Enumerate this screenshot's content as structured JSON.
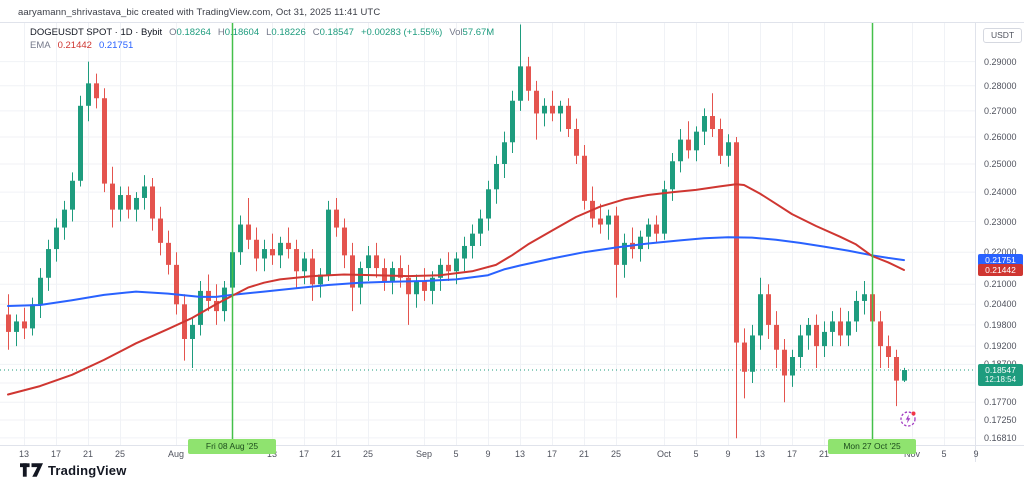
{
  "watermark": "aaryamann_shrivastava_bic created with TradingView.com, Oct 31, 2025 11:41 UTC",
  "legend": {
    "symbol": "DOGEUSDT SPOT · 1D · Bybit",
    "o_label": "O",
    "o": "0.18264",
    "h_label": "H",
    "h": "0.18604",
    "l_label": "L",
    "l": "0.18226",
    "c_label": "C",
    "c": "0.18547",
    "change": "+0.00283 (+1.55%)",
    "vol_label": "Vol",
    "vol": "57.67M",
    "ema_label": "EMA",
    "ema_fast_value": "0.21442",
    "ema_slow_value": "0.21751"
  },
  "axis": {
    "currency": "USDT"
  },
  "footer": {
    "brand": "TradingView"
  },
  "colors": {
    "up": "#1e9c7e",
    "down": "#e4544e",
    "ema_fast": "#cf3631",
    "ema_slow": "#2962ff",
    "grid": "#f0f2f6",
    "event_line": "#44c04a",
    "event_badge_bg": "#8fe36f",
    "event_badge_text": "#1d4d1d",
    "marker_purple": "#a23bc2",
    "marker_dot": "#f23645"
  },
  "chart_data": {
    "type": "candlestick",
    "symbol": "DOGEUSDT",
    "exchange": "Bybit",
    "interval": "1D",
    "scale": "log",
    "legend_note": "overlays: EMA 0.21442 (red), EMA 0.21751 (blue)",
    "base_date": "2025-07-11",
    "ylim": [
      0.166,
      0.307
    ],
    "last_price": 0.18547,
    "last_price_label": "0.18547",
    "countdown": "12:18:54",
    "price_ticks": [
      {
        "label": "0.29000",
        "value": 0.29
      },
      {
        "label": "0.28000",
        "value": 0.28
      },
      {
        "label": "0.27000",
        "value": 0.27
      },
      {
        "label": "0.26000",
        "value": 0.26
      },
      {
        "label": "0.25000",
        "value": 0.25
      },
      {
        "label": "0.24000",
        "value": 0.24
      },
      {
        "label": "0.23000",
        "value": 0.23
      },
      {
        "label": "0.22000",
        "value": 0.22
      },
      {
        "label": "0.21000",
        "value": 0.21
      },
      {
        "label": "0.20400",
        "value": 0.204
      },
      {
        "label": "0.19800",
        "value": 0.198
      },
      {
        "label": "0.19200",
        "value": 0.192
      },
      {
        "label": "0.18700",
        "value": 0.187
      },
      {
        "label": "0.18200",
        "value": 0.182
      },
      {
        "label": "0.17700",
        "value": 0.177
      },
      {
        "label": "0.17250",
        "value": 0.1725
      },
      {
        "label": "0.16810",
        "value": 0.1681
      }
    ],
    "price_badges": [
      {
        "label": "0.21751",
        "value": 0.21751,
        "type": "ema_slow"
      },
      {
        "label": "0.21442",
        "value": 0.21442,
        "type": "ema_fast"
      }
    ],
    "time_ticks": [
      {
        "label": "13",
        "date": "2025-07-13"
      },
      {
        "label": "17",
        "date": "2025-07-17"
      },
      {
        "label": "21",
        "date": "2025-07-21"
      },
      {
        "label": "25",
        "date": "2025-07-25"
      },
      {
        "label": "Aug",
        "date": "2025-08-01"
      },
      {
        "label": "13",
        "date": "2025-08-13"
      },
      {
        "label": "17",
        "date": "2025-08-17"
      },
      {
        "label": "21",
        "date": "2025-08-21"
      },
      {
        "label": "25",
        "date": "2025-08-25"
      },
      {
        "label": "Sep",
        "date": "2025-09-01"
      },
      {
        "label": "5",
        "date": "2025-09-05"
      },
      {
        "label": "9",
        "date": "2025-09-09"
      },
      {
        "label": "13",
        "date": "2025-09-13"
      },
      {
        "label": "17",
        "date": "2025-09-17"
      },
      {
        "label": "21",
        "date": "2025-09-21"
      },
      {
        "label": "25",
        "date": "2025-09-25"
      },
      {
        "label": "Oct",
        "date": "2025-10-01"
      },
      {
        "label": "5",
        "date": "2025-10-05"
      },
      {
        "label": "9",
        "date": "2025-10-09"
      },
      {
        "label": "13",
        "date": "2025-10-13"
      },
      {
        "label": "17",
        "date": "2025-10-17"
      },
      {
        "label": "21",
        "date": "2025-10-21"
      },
      {
        "label": "Nov",
        "date": "2025-11-01"
      },
      {
        "label": "5",
        "date": "2025-11-05"
      },
      {
        "label": "9",
        "date": "2025-11-09"
      }
    ],
    "event_lines": [
      {
        "label": "Fri 08 Aug '25",
        "date": "2025-08-08"
      },
      {
        "label": "Mon 27 Oct '25",
        "date": "2025-10-27"
      }
    ],
    "candles": [
      [
        "2025-07-11",
        0.201,
        0.207,
        0.191,
        0.196
      ],
      [
        "2025-07-12",
        0.196,
        0.201,
        0.192,
        0.199
      ],
      [
        "2025-07-13",
        0.199,
        0.203,
        0.194,
        0.197
      ],
      [
        "2025-07-14",
        0.197,
        0.206,
        0.195,
        0.204
      ],
      [
        "2025-07-15",
        0.204,
        0.215,
        0.2,
        0.212
      ],
      [
        "2025-07-16",
        0.212,
        0.224,
        0.208,
        0.221
      ],
      [
        "2025-07-17",
        0.221,
        0.231,
        0.217,
        0.228
      ],
      [
        "2025-07-18",
        0.228,
        0.237,
        0.224,
        0.234
      ],
      [
        "2025-07-19",
        0.234,
        0.247,
        0.23,
        0.244
      ],
      [
        "2025-07-20",
        0.244,
        0.276,
        0.242,
        0.272
      ],
      [
        "2025-07-21",
        0.272,
        0.29,
        0.266,
        0.281
      ],
      [
        "2025-07-22",
        0.281,
        0.285,
        0.271,
        0.275
      ],
      [
        "2025-07-23",
        0.275,
        0.279,
        0.24,
        0.243
      ],
      [
        "2025-07-24",
        0.243,
        0.249,
        0.228,
        0.234
      ],
      [
        "2025-07-25",
        0.234,
        0.242,
        0.23,
        0.239
      ],
      [
        "2025-07-26",
        0.239,
        0.242,
        0.231,
        0.234
      ],
      [
        "2025-07-27",
        0.234,
        0.24,
        0.23,
        0.238
      ],
      [
        "2025-07-28",
        0.238,
        0.246,
        0.234,
        0.242
      ],
      [
        "2025-07-29",
        0.242,
        0.245,
        0.227,
        0.231
      ],
      [
        "2025-07-30",
        0.231,
        0.235,
        0.219,
        0.223
      ],
      [
        "2025-07-31",
        0.223,
        0.227,
        0.213,
        0.216
      ],
      [
        "2025-08-01",
        0.216,
        0.22,
        0.201,
        0.204
      ],
      [
        "2025-08-02",
        0.204,
        0.207,
        0.188,
        0.194
      ],
      [
        "2025-08-03",
        0.194,
        0.2,
        0.186,
        0.198
      ],
      [
        "2025-08-04",
        0.198,
        0.211,
        0.195,
        0.208
      ],
      [
        "2025-08-05",
        0.208,
        0.213,
        0.202,
        0.205
      ],
      [
        "2025-08-06",
        0.205,
        0.21,
        0.198,
        0.202
      ],
      [
        "2025-08-07",
        0.202,
        0.211,
        0.199,
        0.209
      ],
      [
        "2025-08-08",
        0.209,
        0.223,
        0.206,
        0.22
      ],
      [
        "2025-08-09",
        0.22,
        0.232,
        0.216,
        0.229
      ],
      [
        "2025-08-10",
        0.229,
        0.238,
        0.221,
        0.224
      ],
      [
        "2025-08-11",
        0.224,
        0.228,
        0.214,
        0.218
      ],
      [
        "2025-08-12",
        0.218,
        0.224,
        0.214,
        0.221
      ],
      [
        "2025-08-13",
        0.221,
        0.226,
        0.216,
        0.219
      ],
      [
        "2025-08-14",
        0.219,
        0.225,
        0.215,
        0.223
      ],
      [
        "2025-08-15",
        0.223,
        0.228,
        0.218,
        0.221
      ],
      [
        "2025-08-16",
        0.221,
        0.224,
        0.209,
        0.214
      ],
      [
        "2025-08-17",
        0.214,
        0.22,
        0.21,
        0.218
      ],
      [
        "2025-08-18",
        0.218,
        0.221,
        0.205,
        0.21
      ],
      [
        "2025-08-19",
        0.21,
        0.215,
        0.206,
        0.213
      ],
      [
        "2025-08-20",
        0.213,
        0.237,
        0.211,
        0.234
      ],
      [
        "2025-08-21",
        0.234,
        0.238,
        0.225,
        0.228
      ],
      [
        "2025-08-22",
        0.228,
        0.231,
        0.215,
        0.219
      ],
      [
        "2025-08-23",
        0.219,
        0.223,
        0.202,
        0.209
      ],
      [
        "2025-08-24",
        0.209,
        0.217,
        0.204,
        0.215
      ],
      [
        "2025-08-25",
        0.215,
        0.222,
        0.211,
        0.219
      ],
      [
        "2025-08-26",
        0.219,
        0.223,
        0.212,
        0.215
      ],
      [
        "2025-08-27",
        0.215,
        0.218,
        0.208,
        0.211
      ],
      [
        "2025-08-28",
        0.211,
        0.217,
        0.207,
        0.215
      ],
      [
        "2025-08-29",
        0.215,
        0.219,
        0.209,
        0.212
      ],
      [
        "2025-08-30",
        0.212,
        0.216,
        0.198,
        0.207
      ],
      [
        "2025-08-31",
        0.207,
        0.213,
        0.203,
        0.211
      ],
      [
        "2025-09-01",
        0.211,
        0.215,
        0.205,
        0.208
      ],
      [
        "2025-09-02",
        0.208,
        0.214,
        0.204,
        0.212
      ],
      [
        "2025-09-03",
        0.212,
        0.218,
        0.208,
        0.216
      ],
      [
        "2025-09-04",
        0.216,
        0.22,
        0.211,
        0.214
      ],
      [
        "2025-09-05",
        0.214,
        0.22,
        0.21,
        0.218
      ],
      [
        "2025-09-06",
        0.218,
        0.225,
        0.214,
        0.222
      ],
      [
        "2025-09-07",
        0.222,
        0.229,
        0.218,
        0.226
      ],
      [
        "2025-09-08",
        0.226,
        0.234,
        0.222,
        0.231
      ],
      [
        "2025-09-09",
        0.231,
        0.244,
        0.227,
        0.241
      ],
      [
        "2025-09-10",
        0.241,
        0.253,
        0.236,
        0.25
      ],
      [
        "2025-09-11",
        0.25,
        0.262,
        0.245,
        0.258
      ],
      [
        "2025-09-12",
        0.258,
        0.278,
        0.254,
        0.274
      ],
      [
        "2025-09-13",
        0.274,
        0.306,
        0.27,
        0.288
      ],
      [
        "2025-09-14",
        0.288,
        0.292,
        0.274,
        0.278
      ],
      [
        "2025-09-15",
        0.278,
        0.282,
        0.259,
        0.269
      ],
      [
        "2025-09-16",
        0.269,
        0.275,
        0.264,
        0.272
      ],
      [
        "2025-09-17",
        0.272,
        0.278,
        0.266,
        0.269
      ],
      [
        "2025-09-18",
        0.269,
        0.274,
        0.262,
        0.272
      ],
      [
        "2025-09-19",
        0.272,
        0.275,
        0.26,
        0.263
      ],
      [
        "2025-09-20",
        0.263,
        0.267,
        0.25,
        0.253
      ],
      [
        "2025-09-21",
        0.253,
        0.257,
        0.234,
        0.237
      ],
      [
        "2025-09-22",
        0.237,
        0.242,
        0.228,
        0.231
      ],
      [
        "2025-09-23",
        0.231,
        0.236,
        0.226,
        0.229
      ],
      [
        "2025-09-24",
        0.229,
        0.234,
        0.224,
        0.232
      ],
      [
        "2025-09-25",
        0.232,
        0.235,
        0.206,
        0.216
      ],
      [
        "2025-09-26",
        0.216,
        0.226,
        0.212,
        0.223
      ],
      [
        "2025-09-27",
        0.223,
        0.228,
        0.218,
        0.221
      ],
      [
        "2025-09-28",
        0.221,
        0.227,
        0.217,
        0.225
      ],
      [
        "2025-09-29",
        0.225,
        0.231,
        0.221,
        0.229
      ],
      [
        "2025-09-30",
        0.229,
        0.232,
        0.223,
        0.226
      ],
      [
        "2025-10-01",
        0.226,
        0.244,
        0.224,
        0.241
      ],
      [
        "2025-10-02",
        0.241,
        0.254,
        0.237,
        0.251
      ],
      [
        "2025-10-03",
        0.251,
        0.263,
        0.247,
        0.259
      ],
      [
        "2025-10-04",
        0.259,
        0.266,
        0.252,
        0.255
      ],
      [
        "2025-10-05",
        0.255,
        0.264,
        0.251,
        0.262
      ],
      [
        "2025-10-06",
        0.262,
        0.271,
        0.257,
        0.268
      ],
      [
        "2025-10-07",
        0.268,
        0.277,
        0.26,
        0.263
      ],
      [
        "2025-10-08",
        0.263,
        0.267,
        0.25,
        0.253
      ],
      [
        "2025-10-09",
        0.253,
        0.261,
        0.249,
        0.258
      ],
      [
        "2025-10-10",
        0.258,
        0.26,
        0.168,
        0.193
      ],
      [
        "2025-10-11",
        0.193,
        0.197,
        0.178,
        0.185
      ],
      [
        "2025-10-12",
        0.185,
        0.198,
        0.182,
        0.195
      ],
      [
        "2025-10-13",
        0.195,
        0.212,
        0.191,
        0.207
      ],
      [
        "2025-10-14",
        0.207,
        0.21,
        0.194,
        0.198
      ],
      [
        "2025-10-15",
        0.198,
        0.202,
        0.186,
        0.191
      ],
      [
        "2025-10-16",
        0.191,
        0.194,
        0.177,
        0.184
      ],
      [
        "2025-10-17",
        0.184,
        0.191,
        0.181,
        0.189
      ],
      [
        "2025-10-18",
        0.189,
        0.198,
        0.186,
        0.195
      ],
      [
        "2025-10-19",
        0.195,
        0.2,
        0.191,
        0.198
      ],
      [
        "2025-10-20",
        0.198,
        0.201,
        0.186,
        0.192
      ],
      [
        "2025-10-21",
        0.192,
        0.199,
        0.189,
        0.196
      ],
      [
        "2025-10-22",
        0.196,
        0.202,
        0.192,
        0.199
      ],
      [
        "2025-10-23",
        0.199,
        0.203,
        0.192,
        0.195
      ],
      [
        "2025-10-24",
        0.195,
        0.202,
        0.192,
        0.199
      ],
      [
        "2025-10-25",
        0.199,
        0.208,
        0.196,
        0.205
      ],
      [
        "2025-10-26",
        0.205,
        0.211,
        0.201,
        0.207
      ],
      [
        "2025-10-27",
        0.207,
        0.209,
        0.196,
        0.199
      ],
      [
        "2025-10-28",
        0.199,
        0.202,
        0.186,
        0.192
      ],
      [
        "2025-10-29",
        0.192,
        0.195,
        0.186,
        0.189
      ],
      [
        "2025-10-30",
        0.189,
        0.191,
        0.176,
        0.18264
      ],
      [
        "2025-10-31",
        0.18264,
        0.18604,
        0.18226,
        0.18547
      ]
    ],
    "ema_fast": {
      "name": "EMA (red)",
      "current": 0.21442,
      "points": [
        [
          0,
          0.179
        ],
        [
          4,
          0.1812
        ],
        [
          8,
          0.1842
        ],
        [
          12,
          0.1882
        ],
        [
          16,
          0.1928
        ],
        [
          20,
          0.1968
        ],
        [
          23,
          0.2
        ],
        [
          26,
          0.204
        ],
        [
          28,
          0.2065
        ],
        [
          30,
          0.209
        ],
        [
          32,
          0.2105
        ],
        [
          34,
          0.2115
        ],
        [
          38,
          0.2125
        ],
        [
          42,
          0.213
        ],
        [
          46,
          0.2128
        ],
        [
          50,
          0.2125
        ],
        [
          54,
          0.2128
        ],
        [
          58,
          0.214
        ],
        [
          61,
          0.216
        ],
        [
          63,
          0.219
        ],
        [
          65,
          0.2225
        ],
        [
          68,
          0.227
        ],
        [
          71,
          0.2315
        ],
        [
          74,
          0.235
        ],
        [
          77,
          0.2375
        ],
        [
          80,
          0.239
        ],
        [
          83,
          0.24
        ],
        [
          86,
          0.2408
        ],
        [
          89,
          0.242
        ],
        [
          91,
          0.2428
        ],
        [
          92,
          0.2425
        ],
        [
          94,
          0.2395
        ],
        [
          96,
          0.236
        ],
        [
          98,
          0.2325
        ],
        [
          101,
          0.2285
        ],
        [
          104,
          0.225
        ],
        [
          106,
          0.2225
        ],
        [
          108,
          0.2188
        ],
        [
          110,
          0.2168
        ],
        [
          112,
          0.2144
        ]
      ]
    },
    "ema_slow": {
      "name": "EMA (blue)",
      "current": 0.21751,
      "points": [
        [
          0,
          0.2035
        ],
        [
          4,
          0.2038
        ],
        [
          8,
          0.2052
        ],
        [
          12,
          0.2068
        ],
        [
          16,
          0.2078
        ],
        [
          20,
          0.2072
        ],
        [
          24,
          0.2062
        ],
        [
          26,
          0.2062
        ],
        [
          28,
          0.2068
        ],
        [
          32,
          0.2078
        ],
        [
          36,
          0.2088
        ],
        [
          40,
          0.2098
        ],
        [
          44,
          0.2105
        ],
        [
          48,
          0.2108
        ],
        [
          52,
          0.211
        ],
        [
          56,
          0.2115
        ],
        [
          60,
          0.2128
        ],
        [
          62,
          0.2146
        ],
        [
          64,
          0.2158
        ],
        [
          68,
          0.218
        ],
        [
          72,
          0.22
        ],
        [
          76,
          0.2215
        ],
        [
          80,
          0.2228
        ],
        [
          84,
          0.2238
        ],
        [
          87,
          0.2245
        ],
        [
          90,
          0.2248
        ],
        [
          93,
          0.2247
        ],
        [
          96,
          0.224
        ],
        [
          99,
          0.223
        ],
        [
          102,
          0.2218
        ],
        [
          105,
          0.2205
        ],
        [
          108,
          0.219
        ],
        [
          110,
          0.2182
        ],
        [
          112,
          0.2175
        ]
      ]
    }
  }
}
